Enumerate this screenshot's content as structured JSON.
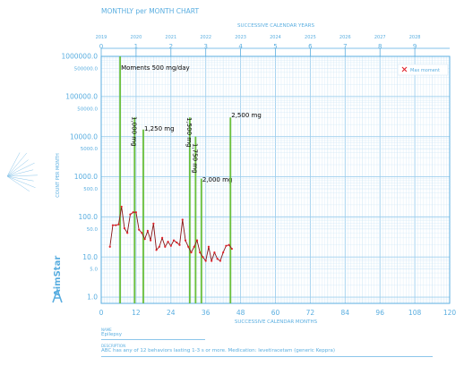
{
  "chart_data": {
    "type": "line",
    "title": "MONTHLY per MONTH CHART",
    "top_axis_title": "SUCCESSIVE CALENDAR YEARS",
    "xlabel": "SUCCESSIVE CALENDAR MONTHS",
    "ylabel": "COUNT PER MONTH",
    "log_y": true,
    "xlim": [
      0,
      120
    ],
    "ylim": [
      0.7,
      1000000
    ],
    "x_ticks": [
      "0",
      "12",
      "24",
      "36",
      "48",
      "60",
      "72",
      "84",
      "96",
      "108",
      "120"
    ],
    "y_ticks": [
      "1.0",
      "5.0",
      "10.0",
      "50.0",
      "100.0",
      "500.0",
      "1000.0",
      "5000.0",
      "10000.0",
      "50000.0",
      "100000.0",
      "500000.0",
      "1000000.0"
    ],
    "year_numbers": [
      "0",
      "1",
      "2",
      "3",
      "4",
      "5",
      "6",
      "7",
      "8",
      "9"
    ],
    "calendar_years": [
      "2019",
      "2020",
      "2021",
      "2022",
      "2023",
      "2024",
      "2025",
      "2026",
      "2027",
      "2028"
    ],
    "series": [
      {
        "name": "Max moment",
        "x": [
          3,
          4,
          5,
          6,
          7,
          8,
          9,
          10,
          11,
          12,
          13,
          14,
          15,
          16,
          17,
          18,
          19,
          20,
          21,
          22,
          23,
          24,
          25,
          26,
          27,
          28,
          29,
          30,
          31,
          32,
          33,
          34,
          35,
          36,
          37,
          38,
          39,
          40,
          41,
          42,
          43,
          44,
          45
        ],
        "y": [
          18,
          62,
          62,
          65,
          180,
          52,
          40,
          115,
          130,
          130,
          48,
          40,
          28,
          45,
          26,
          68,
          15,
          18,
          30,
          18,
          24,
          19,
          26,
          23,
          20,
          85,
          26,
          18,
          13,
          18,
          26,
          13,
          10,
          8,
          18,
          8,
          13,
          9,
          8,
          13,
          19,
          20,
          16
        ]
      }
    ],
    "phase_lines": [
      {
        "x": 6.5,
        "label": "Moments 500 mg/day",
        "vertical": false
      },
      {
        "x": 11.5,
        "label": "1,000 mg",
        "vertical": true
      },
      {
        "x": 14.5,
        "label": "1,250 mg",
        "vertical": false
      },
      {
        "x": 30.5,
        "label": "1,500 mg",
        "vertical": true
      },
      {
        "x": 32.5,
        "label": "1,750 mg",
        "vertical": true
      },
      {
        "x": 34.5,
        "label": "2,000 mg",
        "vertical": false
      },
      {
        "x": 44.5,
        "label": "2,500 mg",
        "vertical": false
      }
    ],
    "legend": {
      "label": "Max moment",
      "placement": "top-right"
    },
    "grid": true,
    "colors": {
      "axis": "#5aaee0",
      "grid": "#cfe6f6",
      "phase": "#6abf3a",
      "data_line": "#8a1414",
      "data_point": "#e0202a",
      "legend_marker": "#e0202a"
    }
  },
  "brand": "AimStar",
  "footer": {
    "name_label": "NAME",
    "name_value": "Epilepsy",
    "description_label": "DESCRIPTION",
    "description_value": "ABC has any of 12 behaviors lasting 1-3 s or more. Medication: levetiracetam (generic Keppra)"
  }
}
